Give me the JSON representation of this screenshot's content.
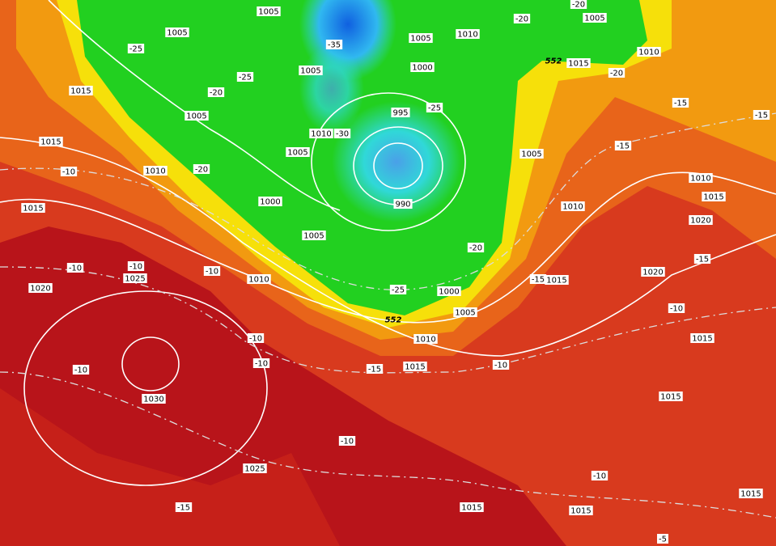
{
  "isobar_labels": [
    "1005",
    "1005",
    "1005",
    "1010",
    "1005",
    "1005",
    "1000",
    "1015",
    "1010",
    "1015",
    "1005",
    "995",
    "1010",
    "1015",
    "1005",
    "1010",
    "1005",
    "1000",
    "990",
    "1015",
    "1010",
    "1010",
    "1015",
    "1020",
    "1005",
    "1020",
    "1020",
    "1025",
    "1010",
    "1015",
    "1000",
    "1005",
    "1010",
    "1015",
    "1015",
    "1030",
    "1015",
    "1025",
    "1015",
    "1015",
    "1015"
  ],
  "temperature_labels": [
    "-20",
    "-20",
    "-25",
    "-25",
    "-35",
    "-20",
    "-25",
    "-30",
    "-20",
    "-10",
    "-15",
    "-15",
    "-20",
    "-20",
    "-10",
    "-10",
    "-10",
    "-15",
    "-25",
    "-15",
    "-10",
    "-10",
    "-10",
    "-10",
    "-15",
    "-10",
    "-10",
    "-10",
    "-15",
    "-5",
    "-15"
  ],
  "geopotential_labels": [
    "552",
    "552"
  ]
}
